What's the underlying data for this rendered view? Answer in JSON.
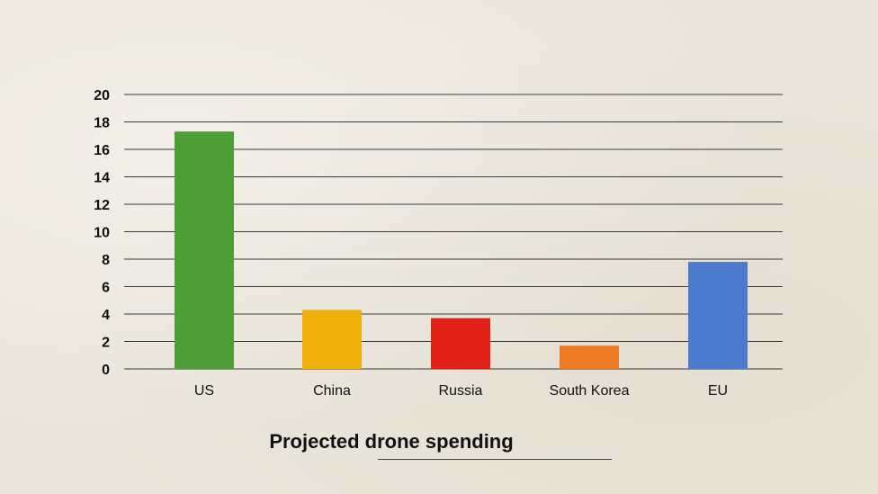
{
  "chart_data": {
    "type": "bar",
    "title": "Projected drone spending",
    "xlabel": "",
    "ylabel": "",
    "categories": [
      "US",
      "China",
      "Russia",
      "South Korea",
      "EU"
    ],
    "values": [
      17.3,
      4.3,
      3.7,
      1.7,
      7.8
    ],
    "colors": [
      "#4d9e37",
      "#efb00b",
      "#e12116",
      "#ef7a25",
      "#4a7bcc"
    ],
    "ylim": [
      0,
      20
    ],
    "yticks": [
      "0",
      "2",
      "4",
      "6",
      "8",
      "10",
      "12",
      "14",
      "16",
      "18",
      "20"
    ],
    "grid": true,
    "legend": "none"
  }
}
